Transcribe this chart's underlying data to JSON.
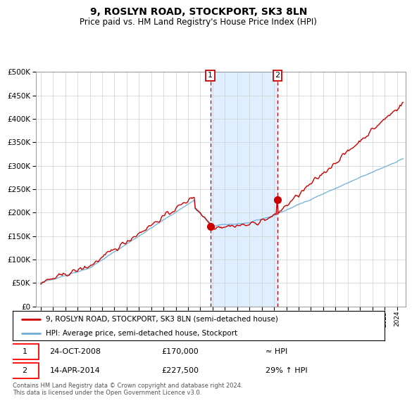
{
  "title": "9, ROSLYN ROAD, STOCKPORT, SK3 8LN",
  "subtitle": "Price paid vs. HM Land Registry's House Price Index (HPI)",
  "legend_line1": "9, ROSLYN ROAD, STOCKPORT, SK3 8LN (semi-detached house)",
  "legend_line2": "HPI: Average price, semi-detached house, Stockport",
  "annotation1_date": "24-OCT-2008",
  "annotation1_price": "£170,000",
  "annotation1_hpi": "≈ HPI",
  "annotation2_date": "14-APR-2014",
  "annotation2_price": "£227,500",
  "annotation2_hpi": "29% ↑ HPI",
  "footnote": "Contains HM Land Registry data © Crown copyright and database right 2024.\nThis data is licensed under the Open Government Licence v3.0.",
  "red_color": "#cc0000",
  "blue_color": "#6baed6",
  "shading_color": "#ddeeff",
  "ylim": [
    0,
    500000
  ],
  "yticks": [
    0,
    50000,
    100000,
    150000,
    200000,
    250000,
    300000,
    350000,
    400000,
    450000,
    500000
  ],
  "sale1_year": 2008.81,
  "sale1_price": 170000,
  "sale2_year": 2014.28,
  "sale2_price": 227500
}
